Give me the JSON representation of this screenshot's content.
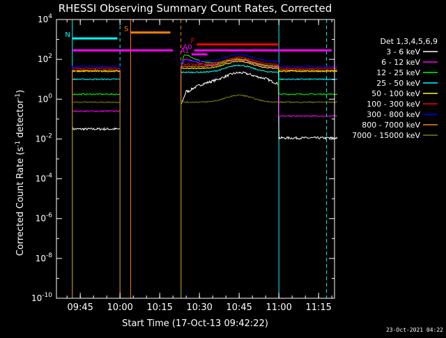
{
  "chart_data": {
    "type": "line",
    "title": "RHESSI Observing Summary Count Rates, Corrected",
    "xlabel": "Start Time (17-Oct-13 09:42:22)",
    "ylabel": "Corrected Count Rate (s",
    "ylabel_sup": "-1",
    "ylabel_tail": " detector",
    "ylabel_tail2": ")",
    "timestamp": "23-Oct-2021 04:22",
    "x_range_min": [
      9.6,
      11.35
    ],
    "y_scale": "log",
    "ylim": [
      1e-10,
      10000.0
    ],
    "x_ticks": [
      {
        "label": "09:45",
        "min": 585
      },
      {
        "label": "10:00",
        "min": 600
      },
      {
        "label": "10:15",
        "min": 615
      },
      {
        "label": "10:30",
        "min": 630
      },
      {
        "label": "10:45",
        "min": 645
      },
      {
        "label": "11:00",
        "min": 660
      },
      {
        "label": "11:15",
        "min": 675
      }
    ],
    "y_ticks": [
      {
        "base": "10",
        "exp": "4",
        "value": 4
      },
      {
        "base": "10",
        "exp": "2",
        "value": 2
      },
      {
        "base": "10",
        "exp": "0",
        "value": 0
      },
      {
        "base": "10",
        "exp": "-2",
        "value": -2
      },
      {
        "base": "10",
        "exp": "-4",
        "value": -4
      },
      {
        "base": "10",
        "exp": "-6",
        "value": -6
      },
      {
        "base": "10",
        "exp": "-8",
        "value": -8
      },
      {
        "base": "10",
        "exp": "-10",
        "value": -10
      }
    ],
    "legend_title": "Det 1,3,4,5,6,9",
    "legend_placement": "right",
    "series": [
      {
        "name": "3 - 6 keV",
        "color": "#ffffff",
        "pre": -1.5,
        "post": -1.95,
        "peak": 0.3,
        "day": 1.5
      },
      {
        "name": "6 - 12 keV",
        "color": "#ff00ff",
        "pre": -0.6,
        "post": -0.85,
        "peak": 2.0,
        "day": 1.6
      },
      {
        "name": "12 - 25 keV",
        "color": "#00ff00",
        "pre": 0.25,
        "post": 0.25,
        "peak": 2.2,
        "day": 1.65
      },
      {
        "name": "25 - 50 keV",
        "color": "#00ffff",
        "pre": 1.0,
        "post": 1.0,
        "peak": 1.35,
        "day": 1.35
      },
      {
        "name": "50 - 100 keV",
        "color": "#ffff00",
        "pre": 1.4,
        "post": 1.4,
        "peak": 1.55,
        "day": 1.55
      },
      {
        "name": "100 - 300 keV",
        "color": "#ff0000",
        "pre": 1.55,
        "post": 1.55,
        "peak": 1.75,
        "day": 1.75
      },
      {
        "name": "300 - 800 keV",
        "color": "#0000ff",
        "pre": 1.65,
        "post": 1.65,
        "peak": 1.9,
        "day": 1.9
      },
      {
        "name": "800 - 7000 keV",
        "color": "#ff8000",
        "pre": 1.45,
        "post": 1.45,
        "peak": 1.65,
        "day": 1.65
      },
      {
        "name": "7000 - 15000 keV",
        "color": "#808000",
        "pre": -0.15,
        "post": -0.15,
        "peak": -0.15,
        "day": -0.15
      }
    ],
    "flags": [
      {
        "label": "S",
        "color": "#ff8000",
        "y_exp": 3.35,
        "start_min": 604,
        "end_min": 619
      },
      {
        "label": "N",
        "color": "#00ffff",
        "y_exp": 3.05,
        "start_min": 582,
        "end_min": 599
      },
      {
        "label": "F",
        "color": "#ff0000",
        "y_exp": 2.75,
        "start_min": 629,
        "end_min": 660
      },
      {
        "label": "A0",
        "color": "#ff00ff",
        "y_exp": 2.45,
        "start_min": 628,
        "end_min": 680
      },
      {
        "label": "A1",
        "color": "#ff00ff",
        "y_exp": 2.25,
        "start_min": 627,
        "end_min": 633
      }
    ],
    "flag_magenta_line": {
      "color": "#ff00ff",
      "y_exp": 2.45,
      "start_min": 582,
      "end_min": 620
    },
    "vlines": [
      {
        "min": 582,
        "color": "#00ffff",
        "style": "solid"
      },
      {
        "min": 600,
        "color": "#00ffff",
        "style": "dashed"
      },
      {
        "min": 604,
        "color": "#ff8000",
        "style": "solid"
      },
      {
        "min": 623,
        "color": "#ff8000",
        "style": "dashed"
      },
      {
        "min": 660,
        "color": "#00ffff",
        "style": "solid"
      },
      {
        "min": 678,
        "color": "#00ffff",
        "style": "dashed"
      }
    ],
    "data_window_min": [
      582,
      682
    ],
    "night_start_min": 600,
    "night_end_min": 623,
    "saa_end_min": 660
  }
}
